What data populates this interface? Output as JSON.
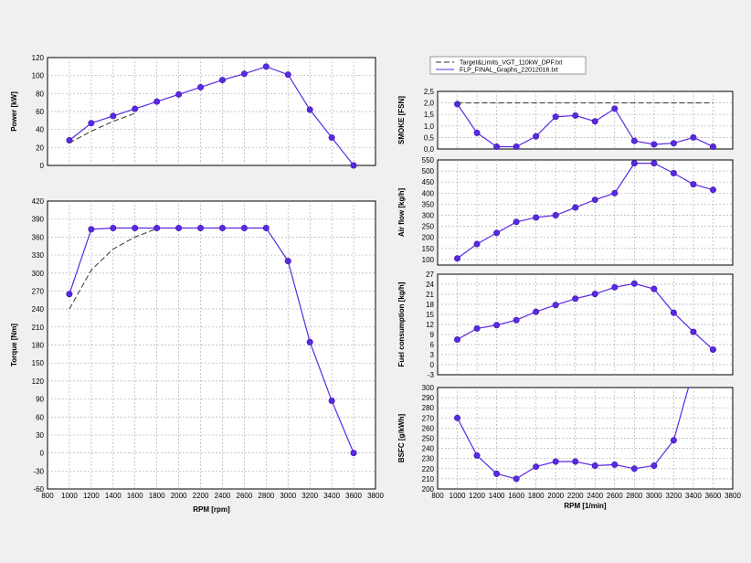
{
  "legend": {
    "target_label": "Target&Limits_VGT_110kW_DPF.txt",
    "final_label": "FLP_FINAL_Graphs_22012016.txt"
  },
  "colors": {
    "measured": "#5a28e6",
    "marker": "#5a28e6",
    "target": "#333333",
    "grid": "#b0b0b0"
  },
  "chart_data": [
    {
      "id": "power",
      "type": "line",
      "ylabel": "Power [kW]",
      "xlabel": "",
      "xlim": [
        800,
        3800
      ],
      "ylim": [
        0,
        120
      ],
      "xticks": [],
      "yticks": [
        0,
        20,
        40,
        60,
        80,
        100,
        120
      ],
      "series": [
        {
          "name": "FLP_FINAL_Graphs_22012016.txt",
          "style": "measured",
          "x": [
            1000,
            1200,
            1400,
            1600,
            1800,
            2000,
            2200,
            2400,
            2600,
            2800,
            3000,
            3200,
            3400,
            3600
          ],
          "y": [
            28,
            47,
            55,
            63,
            71,
            79,
            87,
            95,
            102,
            110,
            101,
            62,
            31,
            0
          ]
        },
        {
          "name": "Target&Limits_VGT_110kW_DPF.txt",
          "style": "target",
          "x": [
            1000,
            1200,
            1400,
            1600
          ],
          "y": [
            25,
            38,
            49,
            58
          ]
        }
      ]
    },
    {
      "id": "torque",
      "type": "line",
      "ylabel": "Torque [Nm]",
      "xlabel": "RPM [rpm]",
      "xlim": [
        800,
        3800
      ],
      "ylim": [
        -60,
        420
      ],
      "xticks": [
        800,
        1000,
        1200,
        1400,
        1600,
        1800,
        2000,
        2200,
        2400,
        2600,
        2800,
        3000,
        3200,
        3400,
        3600,
        3800
      ],
      "yticks": [
        -60,
        -30,
        0,
        30,
        60,
        90,
        120,
        150,
        180,
        210,
        240,
        270,
        300,
        330,
        360,
        390,
        420
      ],
      "series": [
        {
          "name": "FLP_FINAL_Graphs_22012016.txt",
          "style": "measured",
          "x": [
            1000,
            1200,
            1400,
            1600,
            1800,
            2000,
            2200,
            2400,
            2600,
            2800,
            3000,
            3200,
            3400,
            3600
          ],
          "y": [
            265,
            373,
            375,
            375,
            375,
            375,
            375,
            375,
            375,
            375,
            320,
            185,
            87,
            0
          ]
        },
        {
          "name": "Target&Limits_VGT_110kW_DPF.txt",
          "style": "target",
          "x": [
            1000,
            1200,
            1400,
            1600,
            1800
          ],
          "y": [
            240,
            305,
            340,
            360,
            374
          ]
        }
      ]
    },
    {
      "id": "smoke",
      "type": "line",
      "ylabel": "SMOKE [FSN]",
      "xlabel": "",
      "xlim": [
        800,
        3800
      ],
      "ylim": [
        0,
        2.5
      ],
      "xticks": [],
      "yticks": [
        "0,0",
        "0,5",
        "1,0",
        "1,5",
        "2,0",
        "2,5"
      ],
      "ytick_values": [
        0,
        0.5,
        1,
        1.5,
        2,
        2.5
      ],
      "series": [
        {
          "name": "FLP_FINAL_Graphs_22012016.txt",
          "style": "measured",
          "x": [
            1000,
            1200,
            1400,
            1600,
            1800,
            2000,
            2200,
            2400,
            2600,
            2800,
            3000,
            3200,
            3400,
            3600
          ],
          "y": [
            1.95,
            0.7,
            0.1,
            0.1,
            0.55,
            1.4,
            1.45,
            1.2,
            1.75,
            0.35,
            0.2,
            0.25,
            0.5,
            0.1
          ]
        },
        {
          "name": "Target&Limits_VGT_110kW_DPF.txt",
          "style": "target",
          "x": [
            1000,
            3600
          ],
          "y": [
            2.0,
            2.0
          ]
        }
      ]
    },
    {
      "id": "airflow",
      "type": "line",
      "ylabel": "Air flow [kg/h]",
      "xlabel": "",
      "xlim": [
        800,
        3800
      ],
      "ylim": [
        75,
        550
      ],
      "xticks": [],
      "yticks": [
        100,
        150,
        200,
        250,
        300,
        350,
        400,
        450,
        500,
        550
      ],
      "series": [
        {
          "name": "FLP_FINAL_Graphs_22012016.txt",
          "style": "measured",
          "x": [
            1000,
            1200,
            1400,
            1600,
            1800,
            2000,
            2200,
            2400,
            2600,
            2800,
            3000,
            3200,
            3400,
            3600
          ],
          "y": [
            105,
            170,
            220,
            270,
            290,
            300,
            335,
            370,
            400,
            535,
            535,
            490,
            440,
            415
          ]
        }
      ]
    },
    {
      "id": "fuel",
      "type": "line",
      "ylabel": "Fuel consumption [kg/h]",
      "xlabel": "",
      "xlim": [
        800,
        3800
      ],
      "ylim": [
        -3,
        27
      ],
      "xticks": [],
      "yticks": [
        -3,
        0,
        3,
        6,
        9,
        12,
        15,
        18,
        21,
        24,
        27
      ],
      "series": [
        {
          "name": "FLP_FINAL_Graphs_22012016.txt",
          "style": "measured",
          "x": [
            1000,
            1200,
            1400,
            1600,
            1800,
            2000,
            2200,
            2400,
            2600,
            2800,
            3000,
            3200,
            3400,
            3600
          ],
          "y": [
            7.5,
            10.8,
            11.8,
            13.3,
            15.8,
            17.8,
            19.7,
            21.1,
            23.1,
            24.2,
            22.6,
            15.5,
            9.8,
            4.5
          ]
        }
      ]
    },
    {
      "id": "bsfc",
      "type": "line",
      "ylabel": "BSFC [g/kWh]",
      "xlabel": "RPM [1/min]",
      "xlim": [
        800,
        3800
      ],
      "ylim": [
        200,
        300
      ],
      "xticks": [
        800,
        1000,
        1200,
        1400,
        1600,
        1800,
        2000,
        2200,
        2400,
        2600,
        2800,
        3000,
        3200,
        3400,
        3600,
        3800
      ],
      "yticks": [
        200,
        210,
        220,
        230,
        240,
        250,
        260,
        270,
        280,
        290,
        300
      ],
      "series": [
        {
          "name": "FLP_FINAL_Graphs_22012016.txt",
          "style": "measured",
          "x": [
            1000,
            1200,
            1400,
            1600,
            1800,
            2000,
            2200,
            2400,
            2600,
            2800,
            3000,
            3200,
            3350
          ],
          "y": [
            270,
            233,
            215,
            210,
            222,
            227,
            227,
            223,
            224,
            220,
            223,
            248,
            300
          ],
          "markers_upto": 12
        }
      ]
    }
  ]
}
